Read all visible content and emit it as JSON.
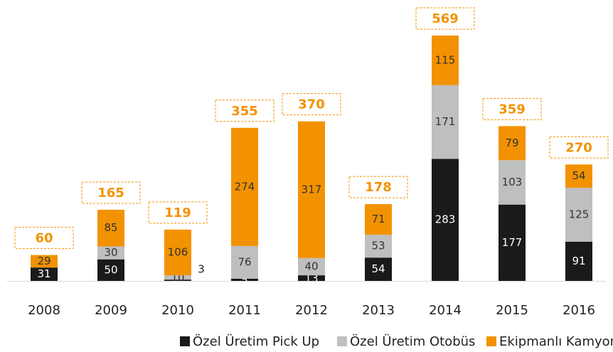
{
  "chart_data": {
    "type": "bar",
    "stacked": true,
    "categories": [
      "2008",
      "2009",
      "2010",
      "2011",
      "2012",
      "2013",
      "2014",
      "2015",
      "2016"
    ],
    "series": [
      {
        "name": "Özel Üretim Pick Up",
        "color": "#1a1a1a",
        "values": [
          31,
          50,
          3,
          5,
          13,
          54,
          283,
          177,
          91
        ]
      },
      {
        "name": "Özel Üretim Otobüs",
        "color": "#bfbfbf",
        "values": [
          null,
          30,
          10,
          76,
          40,
          53,
          171,
          103,
          125
        ]
      },
      {
        "name": "Ekipmanlı Kamyon",
        "color": "#f39200",
        "values": [
          29,
          85,
          106,
          274,
          317,
          71,
          115,
          79,
          54
        ]
      }
    ],
    "totals": [
      60,
      165,
      119,
      355,
      370,
      178,
      569,
      359,
      270
    ]
  }
}
